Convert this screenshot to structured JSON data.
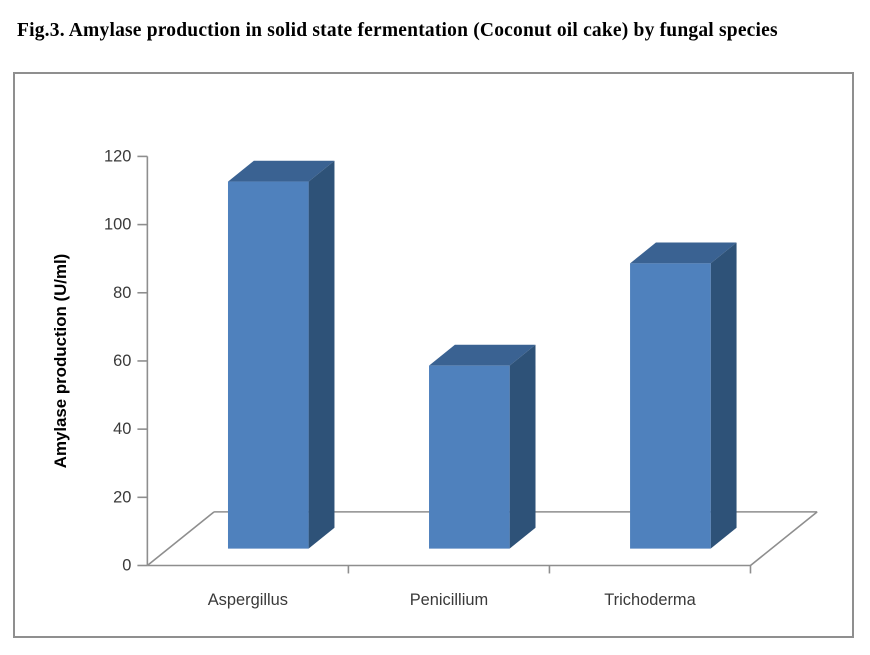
{
  "figure_caption": "Fig.3. Amylase production in solid state fermentation (Coconut oil cake) by fungal species",
  "chart_data": {
    "type": "bar",
    "style": "3d-column",
    "title": "",
    "xlabel": "",
    "ylabel": "Amylase production (U/ml)",
    "categories": [
      "Aspergillus",
      "Penicillium",
      "Trichoderma"
    ],
    "values": [
      110,
      56,
      86
    ],
    "ylim": [
      0,
      120
    ],
    "yticks": [
      0,
      20,
      40,
      60,
      80,
      100,
      120
    ],
    "grid": false,
    "legend_position": "none",
    "colors": {
      "bar_front": "#4F81BD",
      "bar_top": "#3A6292",
      "bar_side": "#2E5278",
      "axis_line": "#8E8E8E",
      "tick_label": "#3A3A3A",
      "axis_title": "#000000",
      "frame_border": "#8F8F8F",
      "background": "#FFFFFF"
    }
  }
}
